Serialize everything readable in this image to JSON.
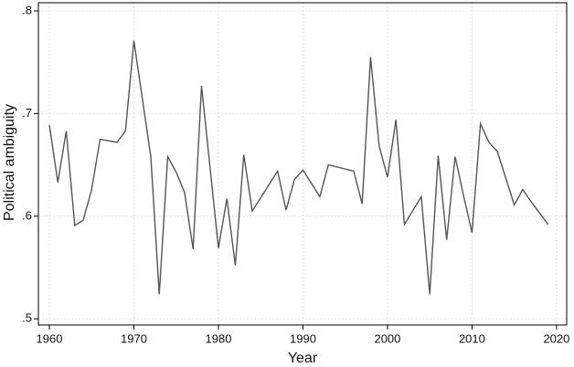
{
  "chart_data": {
    "type": "line",
    "x_label": "Year",
    "y_label": "Political ambiguity",
    "x": [
      1960,
      1961,
      1962,
      1963,
      1964,
      1965,
      1966,
      1968,
      1969,
      1970,
      1972,
      1973,
      1974,
      1975,
      1976,
      1977,
      1978,
      1980,
      1981,
      1982,
      1983,
      1984,
      1987,
      1988,
      1989,
      1990,
      1992,
      1993,
      1996,
      1997,
      1998,
      1999,
      2000,
      2001,
      2002,
      2004,
      2005,
      2006,
      2007,
      2008,
      2009,
      2010,
      2011,
      2012,
      2013,
      2015,
      2016,
      2017,
      2019
    ],
    "series": [
      {
        "name": "Political ambiguity",
        "color": "#555555",
        "values": [
          0.689,
          0.633,
          0.683,
          0.591,
          0.596,
          0.626,
          0.675,
          0.672,
          0.683,
          0.771,
          0.658,
          0.524,
          0.658,
          0.643,
          0.623,
          0.568,
          0.727,
          0.569,
          0.617,
          0.552,
          0.66,
          0.605,
          0.644,
          0.606,
          0.636,
          0.645,
          0.619,
          0.65,
          0.644,
          0.612,
          0.755,
          0.669,
          0.638,
          0.694,
          0.592,
          0.619,
          0.524,
          0.659,
          0.577,
          0.658,
          0.62,
          0.584,
          0.69,
          0.672,
          0.663,
          0.611,
          0.626,
          0.614,
          0.592
        ]
      }
    ],
    "xlim": [
      1958.7,
      2021.2
    ],
    "ylim": [
      0.494,
      0.808
    ],
    "xticks": [
      1960,
      1970,
      1980,
      1990,
      2000,
      2010,
      2020
    ],
    "yticks": [
      {
        "value": 0.8,
        "label": ".8"
      },
      {
        "value": 0.7,
        "label": ".7"
      },
      {
        "value": 0.6,
        "label": ".6"
      },
      {
        "value": 0.5,
        "label": ".5"
      }
    ],
    "grid": true
  }
}
